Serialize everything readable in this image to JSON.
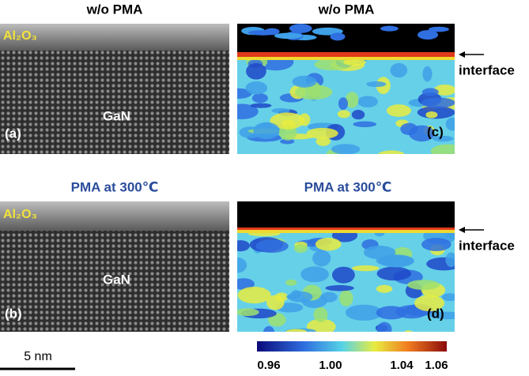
{
  "panels": [
    {
      "title": "w/o PMA",
      "label": "(a)",
      "layer": "Al₂O₃",
      "substrate": "GaN"
    },
    {
      "title": "w/o PMA",
      "label": "(c)",
      "annotation": "interface"
    },
    {
      "title": "PMA at 300℃",
      "label": "(b)",
      "layer": "Al₂O₃",
      "substrate": "GaN"
    },
    {
      "title": "PMA at 300℃",
      "label": "(d)",
      "annotation": "interface"
    }
  ],
  "scale_bar": "5 nm",
  "colorbar": {
    "ticks": [
      "0.96",
      "1.00",
      "1.04",
      "1.06"
    ]
  }
}
